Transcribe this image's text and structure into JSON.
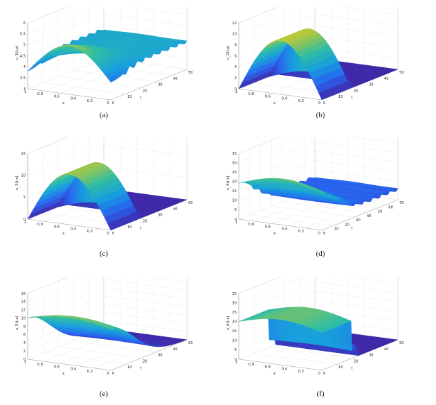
{
  "chart_data": [
    {
      "id": "a",
      "caption": "(a)",
      "type": "surface",
      "profile": "osc",
      "zlabel": "u_1(t,x)",
      "xlabel": "x",
      "tlabel": "t",
      "zlim": [
        3,
        6
      ],
      "tlim": [
        0,
        50
      ],
      "xlim": [
        0,
        1
      ],
      "zticks": [
        "3",
        "3.5",
        "4",
        "4.5",
        "5",
        "5.5",
        "6"
      ],
      "tticks": [
        "0",
        "10",
        "20",
        "30",
        "40",
        "50"
      ],
      "xticks": [
        "0",
        "0.2",
        "0.4",
        "0.6",
        "0.8",
        "1"
      ],
      "peak": 5.2,
      "base": 3.8,
      "plateau": 4.3
    },
    {
      "id": "b",
      "caption": "(b)",
      "type": "surface",
      "profile": "drop",
      "zlabel": "u_2(t,x)",
      "xlabel": "x",
      "tlabel": "t",
      "zlim": [
        0,
        12
      ],
      "tlim": [
        0,
        50
      ],
      "xlim": [
        0,
        1
      ],
      "zticks": [
        "0",
        "2",
        "4",
        "6",
        "8",
        "10",
        "12"
      ],
      "tticks": [
        "0",
        "10",
        "20",
        "30",
        "40",
        "50"
      ],
      "xticks": [
        "0",
        "0.2",
        "0.4",
        "0.6",
        "0.8",
        "1"
      ],
      "peak": 9.8,
      "base": 0,
      "plateau": 0
    },
    {
      "id": "c",
      "caption": "(c)",
      "type": "surface",
      "profile": "drop",
      "zlabel": "u_3(t,x)",
      "xlabel": "x",
      "tlabel": "t",
      "zlim": [
        0,
        15
      ],
      "tlim": [
        0,
        50
      ],
      "xlim": [
        0,
        1
      ],
      "zticks": [
        "0",
        "5",
        "10",
        "15"
      ],
      "tticks": [
        "0",
        "10",
        "20",
        "30",
        "40",
        "50"
      ],
      "xticks": [
        "0",
        "0.2",
        "0.4",
        "0.6",
        "0.8",
        "1"
      ],
      "peak": 11.5,
      "base": 0,
      "plateau": 0
    },
    {
      "id": "d",
      "caption": "(d)",
      "type": "surface",
      "profile": "osc",
      "zlabel": "u_4(t,x)",
      "xlabel": "x",
      "tlabel": "t",
      "zlim": [
        0,
        35
      ],
      "tlim": [
        0,
        70
      ],
      "xlim": [
        0,
        1
      ],
      "zticks": [
        "0",
        "5",
        "10",
        "15",
        "20",
        "25",
        "30",
        "35"
      ],
      "tticks": [
        "0",
        "10",
        "20",
        "30",
        "40",
        "50",
        "60",
        "70"
      ],
      "xticks": [
        "0",
        "0.2",
        "0.4",
        "0.6",
        "0.8",
        "1"
      ],
      "peak": 24,
      "base": 19,
      "plateau": 6
    },
    {
      "id": "e",
      "caption": "(e)",
      "type": "surface",
      "profile": "smooth",
      "zlabel": "u_5(t,x)",
      "xlabel": "x",
      "tlabel": "t",
      "zlim": [
        0,
        16
      ],
      "tlim": [
        0,
        50
      ],
      "xlim": [
        0,
        1
      ],
      "zticks": [
        "0",
        "2",
        "4",
        "6",
        "8",
        "10",
        "12",
        "14",
        "16"
      ],
      "tticks": [
        "0",
        "10",
        "20",
        "30",
        "40",
        "50"
      ],
      "xticks": [
        "0",
        "0.2",
        "0.4",
        "0.6",
        "0.8",
        "1"
      ],
      "peak": 11.5,
      "base": 10,
      "plateau": 0
    },
    {
      "id": "f",
      "caption": "(f)",
      "type": "surface",
      "profile": "drop",
      "zlabel": "u_6(t,x)",
      "xlabel": "x",
      "tlabel": "t",
      "zlim": [
        0,
        35
      ],
      "tlim": [
        0,
        50
      ],
      "xlim": [
        0,
        1
      ],
      "zticks": [
        "0",
        "5",
        "10",
        "15",
        "20",
        "25",
        "30",
        "35"
      ],
      "tticks": [
        "0",
        "10",
        "20",
        "30",
        "40",
        "50"
      ],
      "xticks": [
        "0",
        "0.2",
        "0.4",
        "0.6",
        "0.8",
        "1"
      ],
      "peak": 24,
      "base": 20,
      "plateau": 0
    }
  ]
}
